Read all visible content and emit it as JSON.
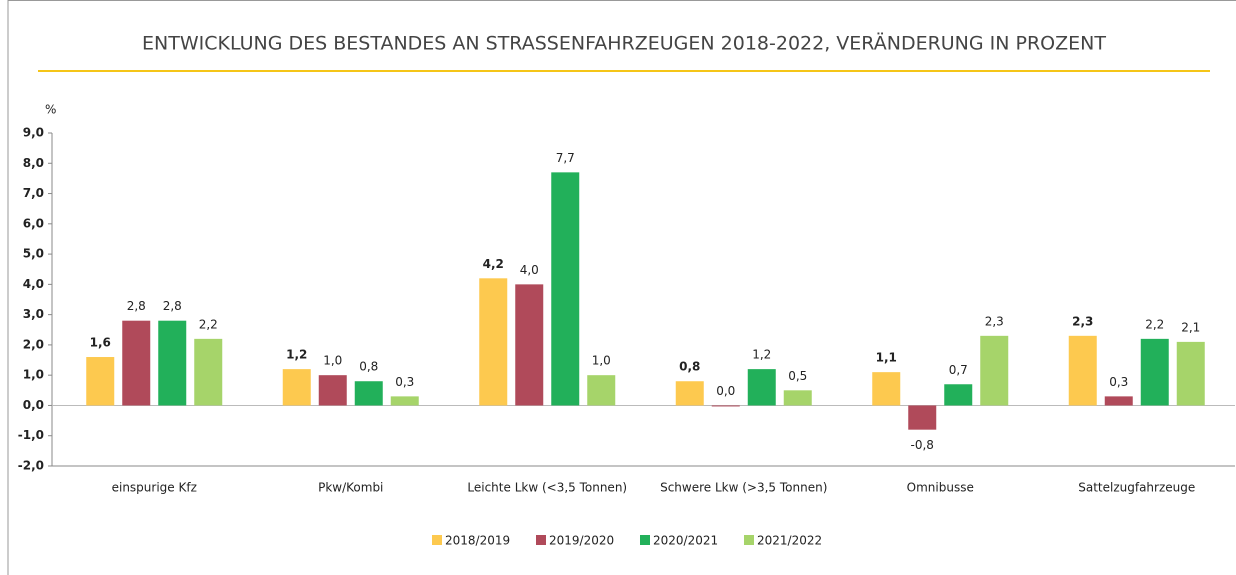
{
  "chart_data": {
    "type": "bar",
    "title": "ENTWICKLUNG DES BESTANDES AN STRASSENFAHRZEUGEN 2018-2022, VERÄNDERUNG IN PROZENT",
    "y_label": "%",
    "categories": [
      "einspurige Kfz",
      "Pkw/Kombi",
      "Leichte Lkw (<3,5 Tonnen)",
      "Schwere Lkw (>3,5 Tonnen)",
      "Omnibusse",
      "Sattelzugfahrzeuge"
    ],
    "series": [
      {
        "name": "2018/2019",
        "color": "#fdc94f",
        "values": [
          1.6,
          1.2,
          4.2,
          0.8,
          1.1,
          2.3
        ],
        "value_labels": [
          "1,6",
          "1,2",
          "4,2",
          "0,8",
          "1,1",
          "2,3"
        ]
      },
      {
        "name": "2019/2020",
        "color": "#b04a5a",
        "values": [
          2.8,
          1.0,
          4.0,
          0.0,
          -0.8,
          0.3
        ],
        "value_labels": [
          "2,8",
          "1,0",
          "4,0",
          "0,0",
          "-0,8",
          "0,3"
        ]
      },
      {
        "name": "2020/2021",
        "color": "#22b05a",
        "values": [
          2.8,
          0.8,
          7.7,
          1.2,
          0.7,
          2.2
        ],
        "value_labels": [
          "2,8",
          "0,8",
          "7,7",
          "1,2",
          "0,7",
          "2,2"
        ]
      },
      {
        "name": "2021/2022",
        "color": "#a6d46a",
        "values": [
          2.2,
          0.3,
          1.0,
          0.5,
          2.3,
          2.1
        ],
        "value_labels": [
          "2,2",
          "0,3",
          "1,0",
          "0,5",
          "2,3",
          "2,1"
        ]
      }
    ],
    "ylim": [
      -2,
      9
    ],
    "yticks": [
      {
        "value": -2,
        "label": "-2,0"
      },
      {
        "value": -1,
        "label": "-1,0"
      },
      {
        "value": 0,
        "label": "0,0"
      },
      {
        "value": 1,
        "label": "1,0"
      },
      {
        "value": 2,
        "label": "2,0"
      },
      {
        "value": 3,
        "label": "3,0"
      },
      {
        "value": 4,
        "label": "4,0"
      },
      {
        "value": 5,
        "label": "5,0"
      },
      {
        "value": 6,
        "label": "6,0"
      },
      {
        "value": 7,
        "label": "7,0"
      },
      {
        "value": 8,
        "label": "8,0"
      },
      {
        "value": 9,
        "label": "9,0"
      }
    ],
    "legend": "bottom",
    "grid": false
  }
}
